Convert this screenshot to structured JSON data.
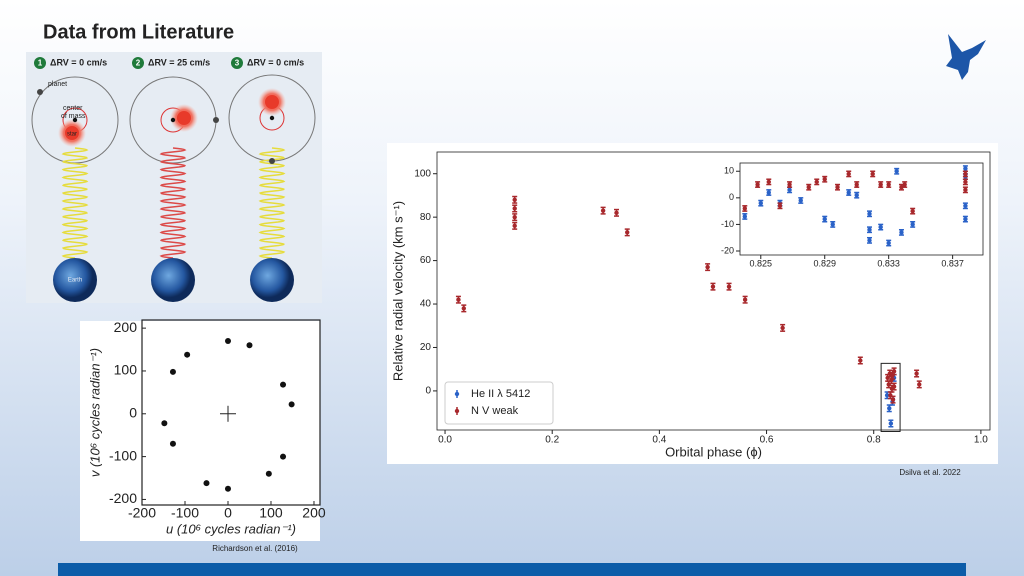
{
  "header": {
    "title": "Data from Literature"
  },
  "diagram": {
    "panels": [
      {
        "number": "1",
        "label": "ΔRV = 0 cm/s"
      },
      {
        "number": "2",
        "label": "ΔRV = 25 cm/s"
      },
      {
        "number": "3",
        "label": "ΔRV = 0 cm/s"
      }
    ],
    "labels": {
      "planet": "planet",
      "center": "center",
      "of_mass": "of mass",
      "star": "star",
      "earth": "Earth"
    }
  },
  "captions": {
    "right": "Dsilva et al. 2022",
    "left": "Richardson et al. (2016)"
  },
  "chart_data": [
    {
      "type": "scatter",
      "x_label": "Orbital phase (ϕ)",
      "y_label": "Relative radial velocity (km s⁻¹)",
      "xlim": [
        -0.015,
        1.017
      ],
      "ylim": [
        -18,
        110
      ],
      "xticks": [
        {
          "value": 0,
          "label": "0.0"
        },
        0.2,
        0.4,
        0.6,
        0.8,
        {
          "value": 1,
          "label": "1.0"
        }
      ],
      "yticks": [
        0,
        20,
        40,
        60,
        80,
        100
      ],
      "legend": "lower left",
      "series": [
        {
          "name": "He II λ 5412",
          "color": "#2a62c8",
          "x": [
            0.825,
            0.829,
            0.832,
            0.835,
            0.838
          ],
          "values": [
            -2,
            -8,
            -15,
            -5,
            6
          ],
          "errors": [
            1.5,
            1.5,
            1.5,
            1.5,
            1.5
          ]
        },
        {
          "name": "N V weak",
          "color": "#a8282c",
          "x": [
            0.025,
            0.035,
            0.13,
            0.13,
            0.13,
            0.13,
            0.295,
            0.32,
            0.34,
            0.49,
            0.5,
            0.53,
            0.56,
            0.63,
            0.775,
            0.826,
            0.828,
            0.83,
            0.831,
            0.833,
            0.834,
            0.835,
            0.836,
            0.838,
            0.838,
            0.88,
            0.885
          ],
          "values": [
            42,
            38,
            88,
            84,
            80,
            76,
            83,
            82,
            73,
            57,
            48,
            48,
            42,
            29,
            14,
            6,
            3,
            8,
            -2,
            5,
            1,
            7,
            -4,
            9,
            2,
            8,
            3
          ],
          "errors": [
            1.5,
            1.5,
            1.5,
            1.5,
            1.5,
            1.5,
            1.5,
            1.5,
            1.5,
            1.5,
            1.5,
            1.5,
            1.5,
            1.5,
            1.5,
            1.5,
            1.5,
            1.5,
            1.5,
            1.5,
            1.5,
            1.5,
            1.5,
            1.5,
            1.5,
            1.5,
            1.5
          ]
        }
      ]
    },
    {
      "type": "scatter",
      "xlim": [
        0.8237,
        0.8389
      ],
      "ylim": [
        -21.5,
        13.1
      ],
      "xticks": [
        0.825,
        0.829,
        0.833,
        0.837
      ],
      "yticks": [
        -20,
        -10,
        0,
        10
      ],
      "series": [
        {
          "color": "#2a62c8",
          "x": [
            0.824,
            0.825,
            0.8255,
            0.8262,
            0.8268,
            0.8275,
            0.829,
            0.8295,
            0.8305,
            0.831,
            0.8318,
            0.8318,
            0.8318,
            0.8325,
            0.833,
            0.8335,
            0.8338,
            0.8345,
            0.8378,
            0.8378,
            0.8378,
            0.8378
          ],
          "values": [
            -7,
            -2,
            2,
            -2,
            3,
            -1,
            -8,
            -10,
            2,
            1,
            -16,
            -12,
            -6,
            -11,
            -17,
            10,
            -13,
            -10,
            11,
            8,
            -3,
            -8
          ],
          "errors": [
            1,
            1,
            1,
            1,
            1,
            1,
            1,
            1,
            1,
            1,
            1,
            1,
            1,
            1,
            1,
            1,
            1,
            1,
            1,
            1,
            1,
            1
          ]
        },
        {
          "color": "#a8282c",
          "x": [
            0.824,
            0.8248,
            0.8255,
            0.8262,
            0.8268,
            0.828,
            0.8285,
            0.829,
            0.8298,
            0.8305,
            0.831,
            0.832,
            0.8325,
            0.833,
            0.8338,
            0.834,
            0.8345,
            0.8378,
            0.8378,
            0.8378
          ],
          "values": [
            -4,
            5,
            6,
            -3,
            5,
            4,
            6,
            7,
            4,
            9,
            5,
            9,
            5,
            5,
            4,
            5,
            -5,
            9,
            6,
            3
          ],
          "errors": [
            1,
            1,
            1,
            1,
            1,
            1,
            1,
            1,
            1,
            1,
            1,
            1,
            1,
            1,
            1,
            1,
            1,
            1,
            1,
            1
          ]
        }
      ]
    },
    {
      "type": "scatter",
      "x_label": "u (10⁶ cycles radian⁻¹)",
      "y_label": "v (10⁶ cycles radian⁻¹)",
      "xlim": [
        -200,
        214
      ],
      "ylim": [
        -213,
        219
      ],
      "xticks": [
        -200,
        -100,
        0,
        100,
        200
      ],
      "yticks": [
        -200,
        -100,
        0,
        100,
        200
      ],
      "series": [
        {
          "color": "#111111",
          "x": [
            0,
            50,
            -95,
            -128,
            128,
            148,
            -148,
            -128,
            128,
            95,
            -50,
            0
          ],
          "values": [
            170,
            160,
            138,
            98,
            68,
            22,
            -22,
            -70,
            -100,
            -140,
            -162,
            -175
          ]
        }
      ]
    }
  ]
}
